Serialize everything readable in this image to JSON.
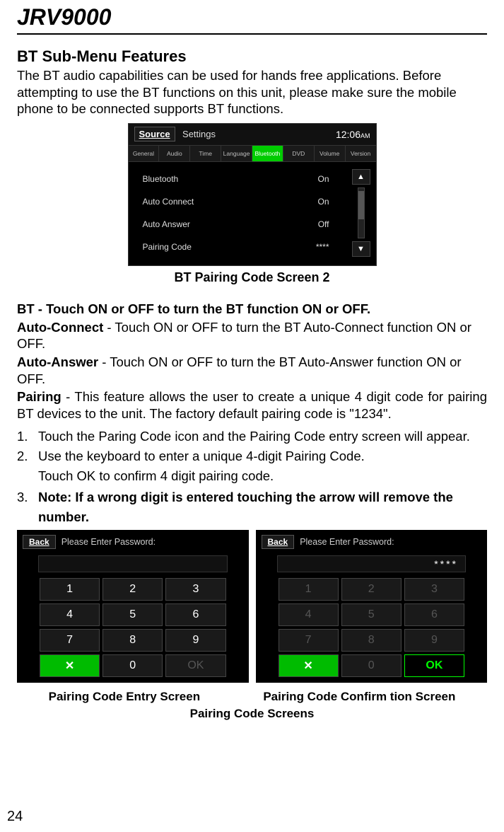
{
  "header": {
    "title": "JRV9000"
  },
  "section": {
    "title": " BT Sub-Menu Features"
  },
  "intro": "The BT audio capabilities can be used for hands free applications. Before attempting to use the BT functions on this unit, please make sure the mobile phone to be connected supports BT functions.",
  "settings_shot": {
    "source_btn": "Source",
    "settings_label": "Settings",
    "clock": "12:06",
    "clock_suffix": "AM",
    "tabs": [
      "General",
      "Audio",
      "Time",
      "Language",
      "Bluetooth",
      "DVD",
      "Volume",
      "Version"
    ],
    "active_tab_index": 4,
    "rows": [
      {
        "label": "Bluetooth",
        "value": "On"
      },
      {
        "label": "Auto Connect",
        "value": "On"
      },
      {
        "label": "Auto Answer",
        "value": "Off"
      },
      {
        "label": "Pairing Code",
        "value": "****"
      }
    ],
    "arrow_up": "▲",
    "arrow_down": "▼"
  },
  "caption1": "BT Pairing Code Screen 2",
  "paras": {
    "bt_head": "BT - Touch ON or OFF to turn the BT function ON or OFF.",
    "ac_head": "Auto-Connect",
    "ac_body": " - Touch ON or OFF to turn the BT Auto-Connect function ON or OFF.",
    "aa_head": "Auto-Answer",
    "aa_body": " - Touch ON or OFF to turn the BT Auto-Answer function ON or OFF.",
    "pg_head": "Pairing",
    "pg_body": " - This feature allows the user to create a unique 4 digit code for pairing  BT devices to the unit. The factory default pairing code is \"1234\"."
  },
  "list": {
    "i1n": "1.",
    "i1": "Touch the Paring Code icon and the Pairing Code entry screen will appear.",
    "i2n": "2.",
    "i2": "Use the keyboard to enter a unique 4-digit Pairing Code.",
    "i2b": "Touch OK to confirm 4 digit pairing code.",
    "i3n": "3.",
    "i3a": "Note: If a wrong digit is entered touching the arrow will remove the",
    "i3b": "number."
  },
  "keypad": {
    "back": "Back",
    "prompt": "Please Enter Password:",
    "display_filled": "****",
    "keys": [
      [
        "1",
        "2",
        "3"
      ],
      [
        "4",
        "5",
        "6"
      ],
      [
        "7",
        "8",
        "9"
      ]
    ],
    "del": "✕",
    "zero": "0",
    "ok": "OK"
  },
  "pair_caps": {
    "left": "Pairing Code Entry Screen",
    "right": "Pairing Code Confirm   tion Screen",
    "sub": "Pairing Code Screens"
  },
  "page_num": "24",
  "colors": {
    "accent_green": "#00cc00"
  }
}
